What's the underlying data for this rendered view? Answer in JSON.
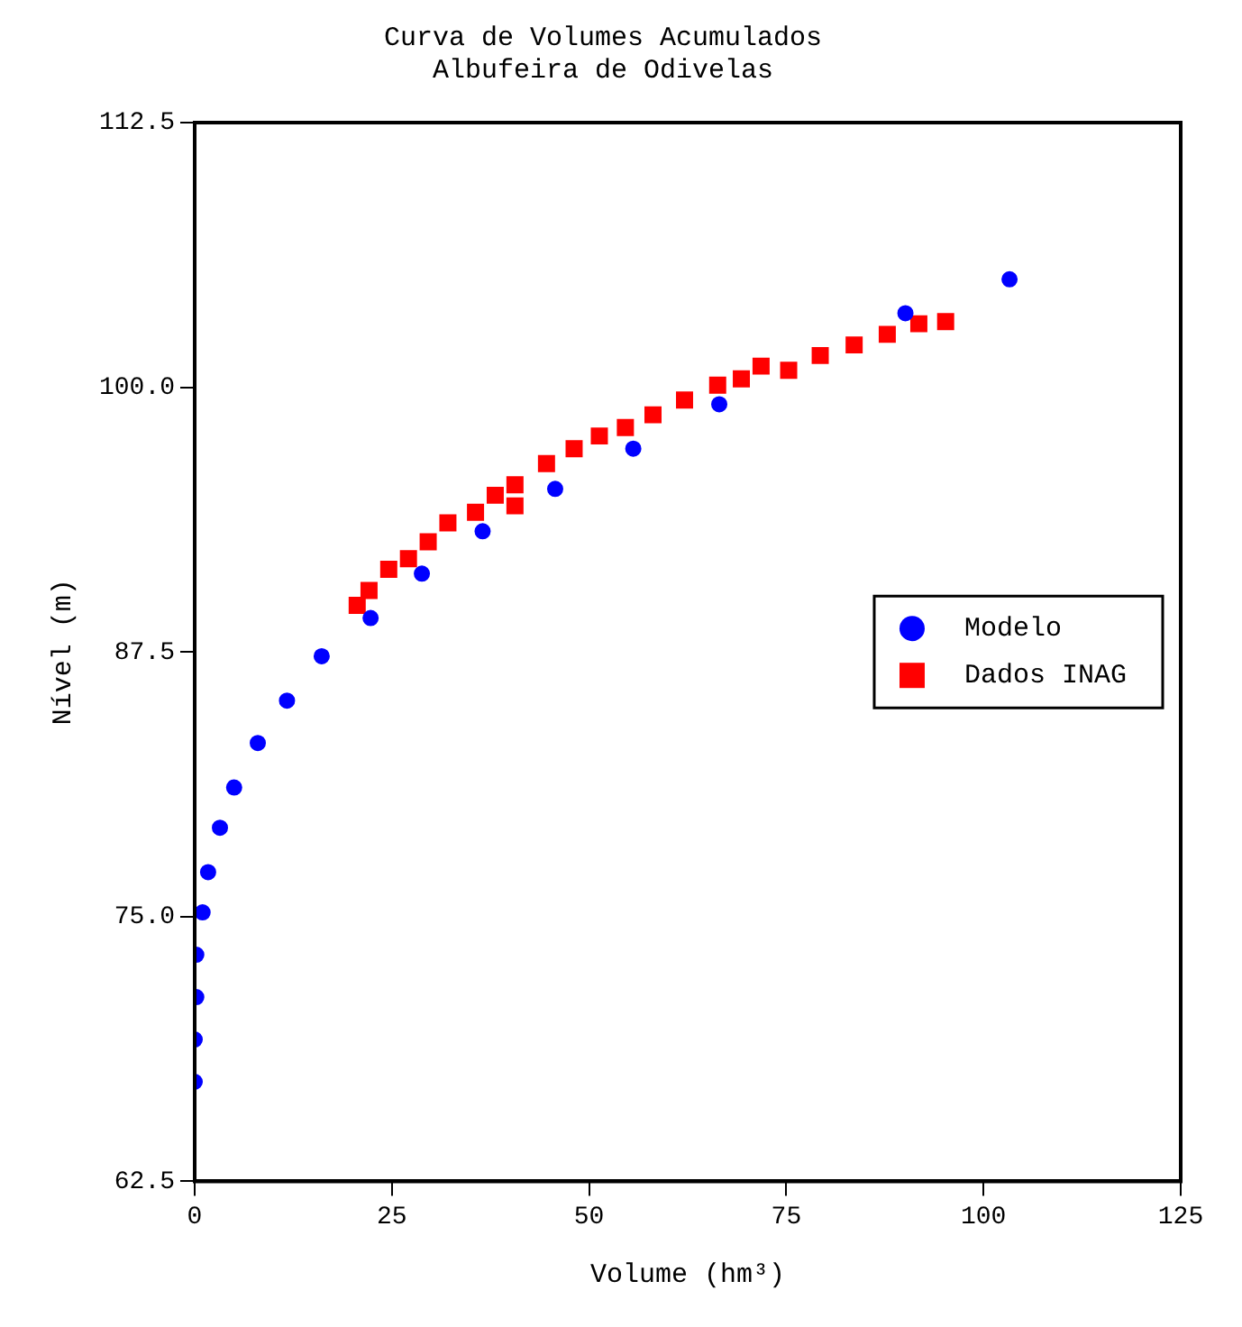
{
  "chart_data": {
    "type": "scatter",
    "title": [
      "Curva de Volumes Acumulados",
      "Albufeira de Odivelas"
    ],
    "xlabel": "Volume (hm³)",
    "ylabel": "Nível (m)",
    "xlim": [
      0,
      125
    ],
    "xticks": [
      0,
      25,
      50,
      75,
      100,
      125
    ],
    "ylim": [
      62.5,
      112.5
    ],
    "yticks": [
      62.5,
      {
        "value": 75,
        "label": "75.0"
      },
      {
        "value": 87.5,
        "label": "87.5"
      },
      {
        "value": 100,
        "label": "100.0"
      },
      112.5
    ],
    "grid": false,
    "legend": "right",
    "series": [
      {
        "name": "Modelo",
        "color": "#0000ff",
        "marker": "circle",
        "x": [
          0,
          0,
          0.2,
          0.2,
          1,
          1.7,
          3.2,
          5,
          8,
          11.7,
          16.1,
          22.3,
          28.8,
          36.5,
          45.7,
          55.6,
          66.5,
          90.1,
          103.3
        ],
        "values": [
          67.2,
          69.2,
          71.2,
          73.2,
          75.2,
          77.1,
          79.2,
          81.1,
          83.2,
          85.2,
          87.3,
          89.1,
          91.2,
          93.2,
          95.2,
          97.1,
          99.2,
          103.5,
          105.1
        ]
      },
      {
        "name": "Dados INAG",
        "color": "#ff0000",
        "marker": "square",
        "x": [
          20.6,
          22.1,
          24.6,
          27.1,
          29.6,
          32.1,
          35.6,
          38.1,
          40.6,
          40.6,
          44.6,
          48.1,
          51.3,
          54.6,
          58.1,
          62.1,
          66.3,
          69.3,
          71.8,
          75.3,
          79.3,
          83.6,
          87.8,
          91.8,
          95.2
        ],
        "values": [
          89.7,
          90.4,
          91.4,
          91.9,
          92.7,
          93.6,
          94.1,
          94.9,
          95.4,
          94.4,
          96.4,
          97.1,
          97.7,
          98.1,
          98.7,
          99.4,
          100.1,
          100.4,
          101.0,
          100.8,
          101.5,
          102.0,
          102.5,
          103.0,
          103.1
        ]
      }
    ]
  }
}
